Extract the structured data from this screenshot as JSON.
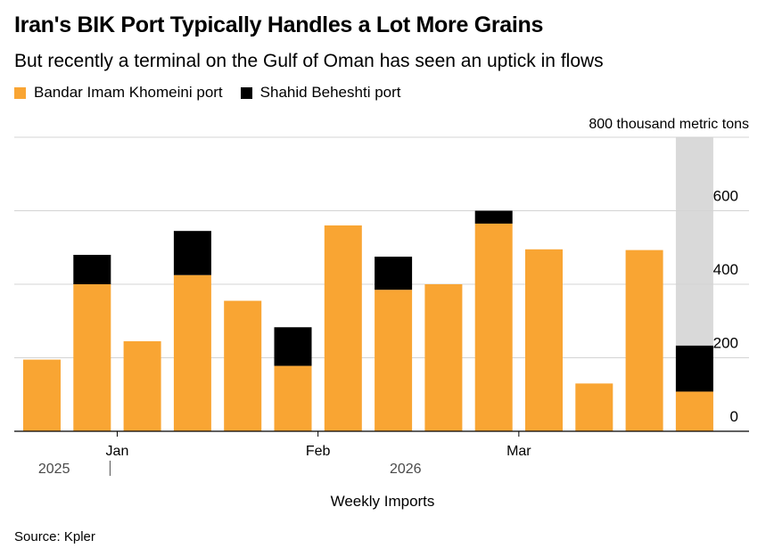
{
  "title": "Iran's BIK Port Typically Handles a Lot More Grains",
  "subtitle": "But recently a terminal on the Gulf of Oman has seen an uptick in flows",
  "source": "Source: Kpler",
  "colors": {
    "bik": "#f9a533",
    "shahid": "#000000",
    "highlight": "#d9d9d9",
    "grid": "#d4d4d4"
  },
  "chart_data": {
    "type": "bar",
    "stacked": true,
    "xlabel": "Weekly Imports",
    "ylabel": "thousand metric tons",
    "ylim": [
      0,
      800
    ],
    "y_ticks": [
      0,
      200,
      400,
      600,
      800
    ],
    "y_top_label": "800 thousand metric tons",
    "month_labels": [
      {
        "label": "Jan",
        "week": 1.5
      },
      {
        "label": "Feb",
        "week": 5.5
      },
      {
        "label": "Mar",
        "week": 9.5
      }
    ],
    "year_labels": [
      {
        "label": "2025",
        "week": 0.3
      },
      {
        "label": "2026",
        "week": 7.3
      }
    ],
    "year_separator_week": 1.5,
    "highlighted_week": 13,
    "weeks": 14,
    "series": [
      {
        "name": "Bandar Imam Khomeini port",
        "color_key": "bik",
        "values": [
          195,
          400,
          245,
          425,
          355,
          178,
          560,
          385,
          400,
          565,
          495,
          130,
          493,
          108
        ]
      },
      {
        "name": "Shahid Beheshti port",
        "color_key": "shahid",
        "values": [
          0,
          80,
          0,
          120,
          0,
          105,
          0,
          90,
          0,
          35,
          0,
          0,
          0,
          125
        ]
      }
    ]
  }
}
